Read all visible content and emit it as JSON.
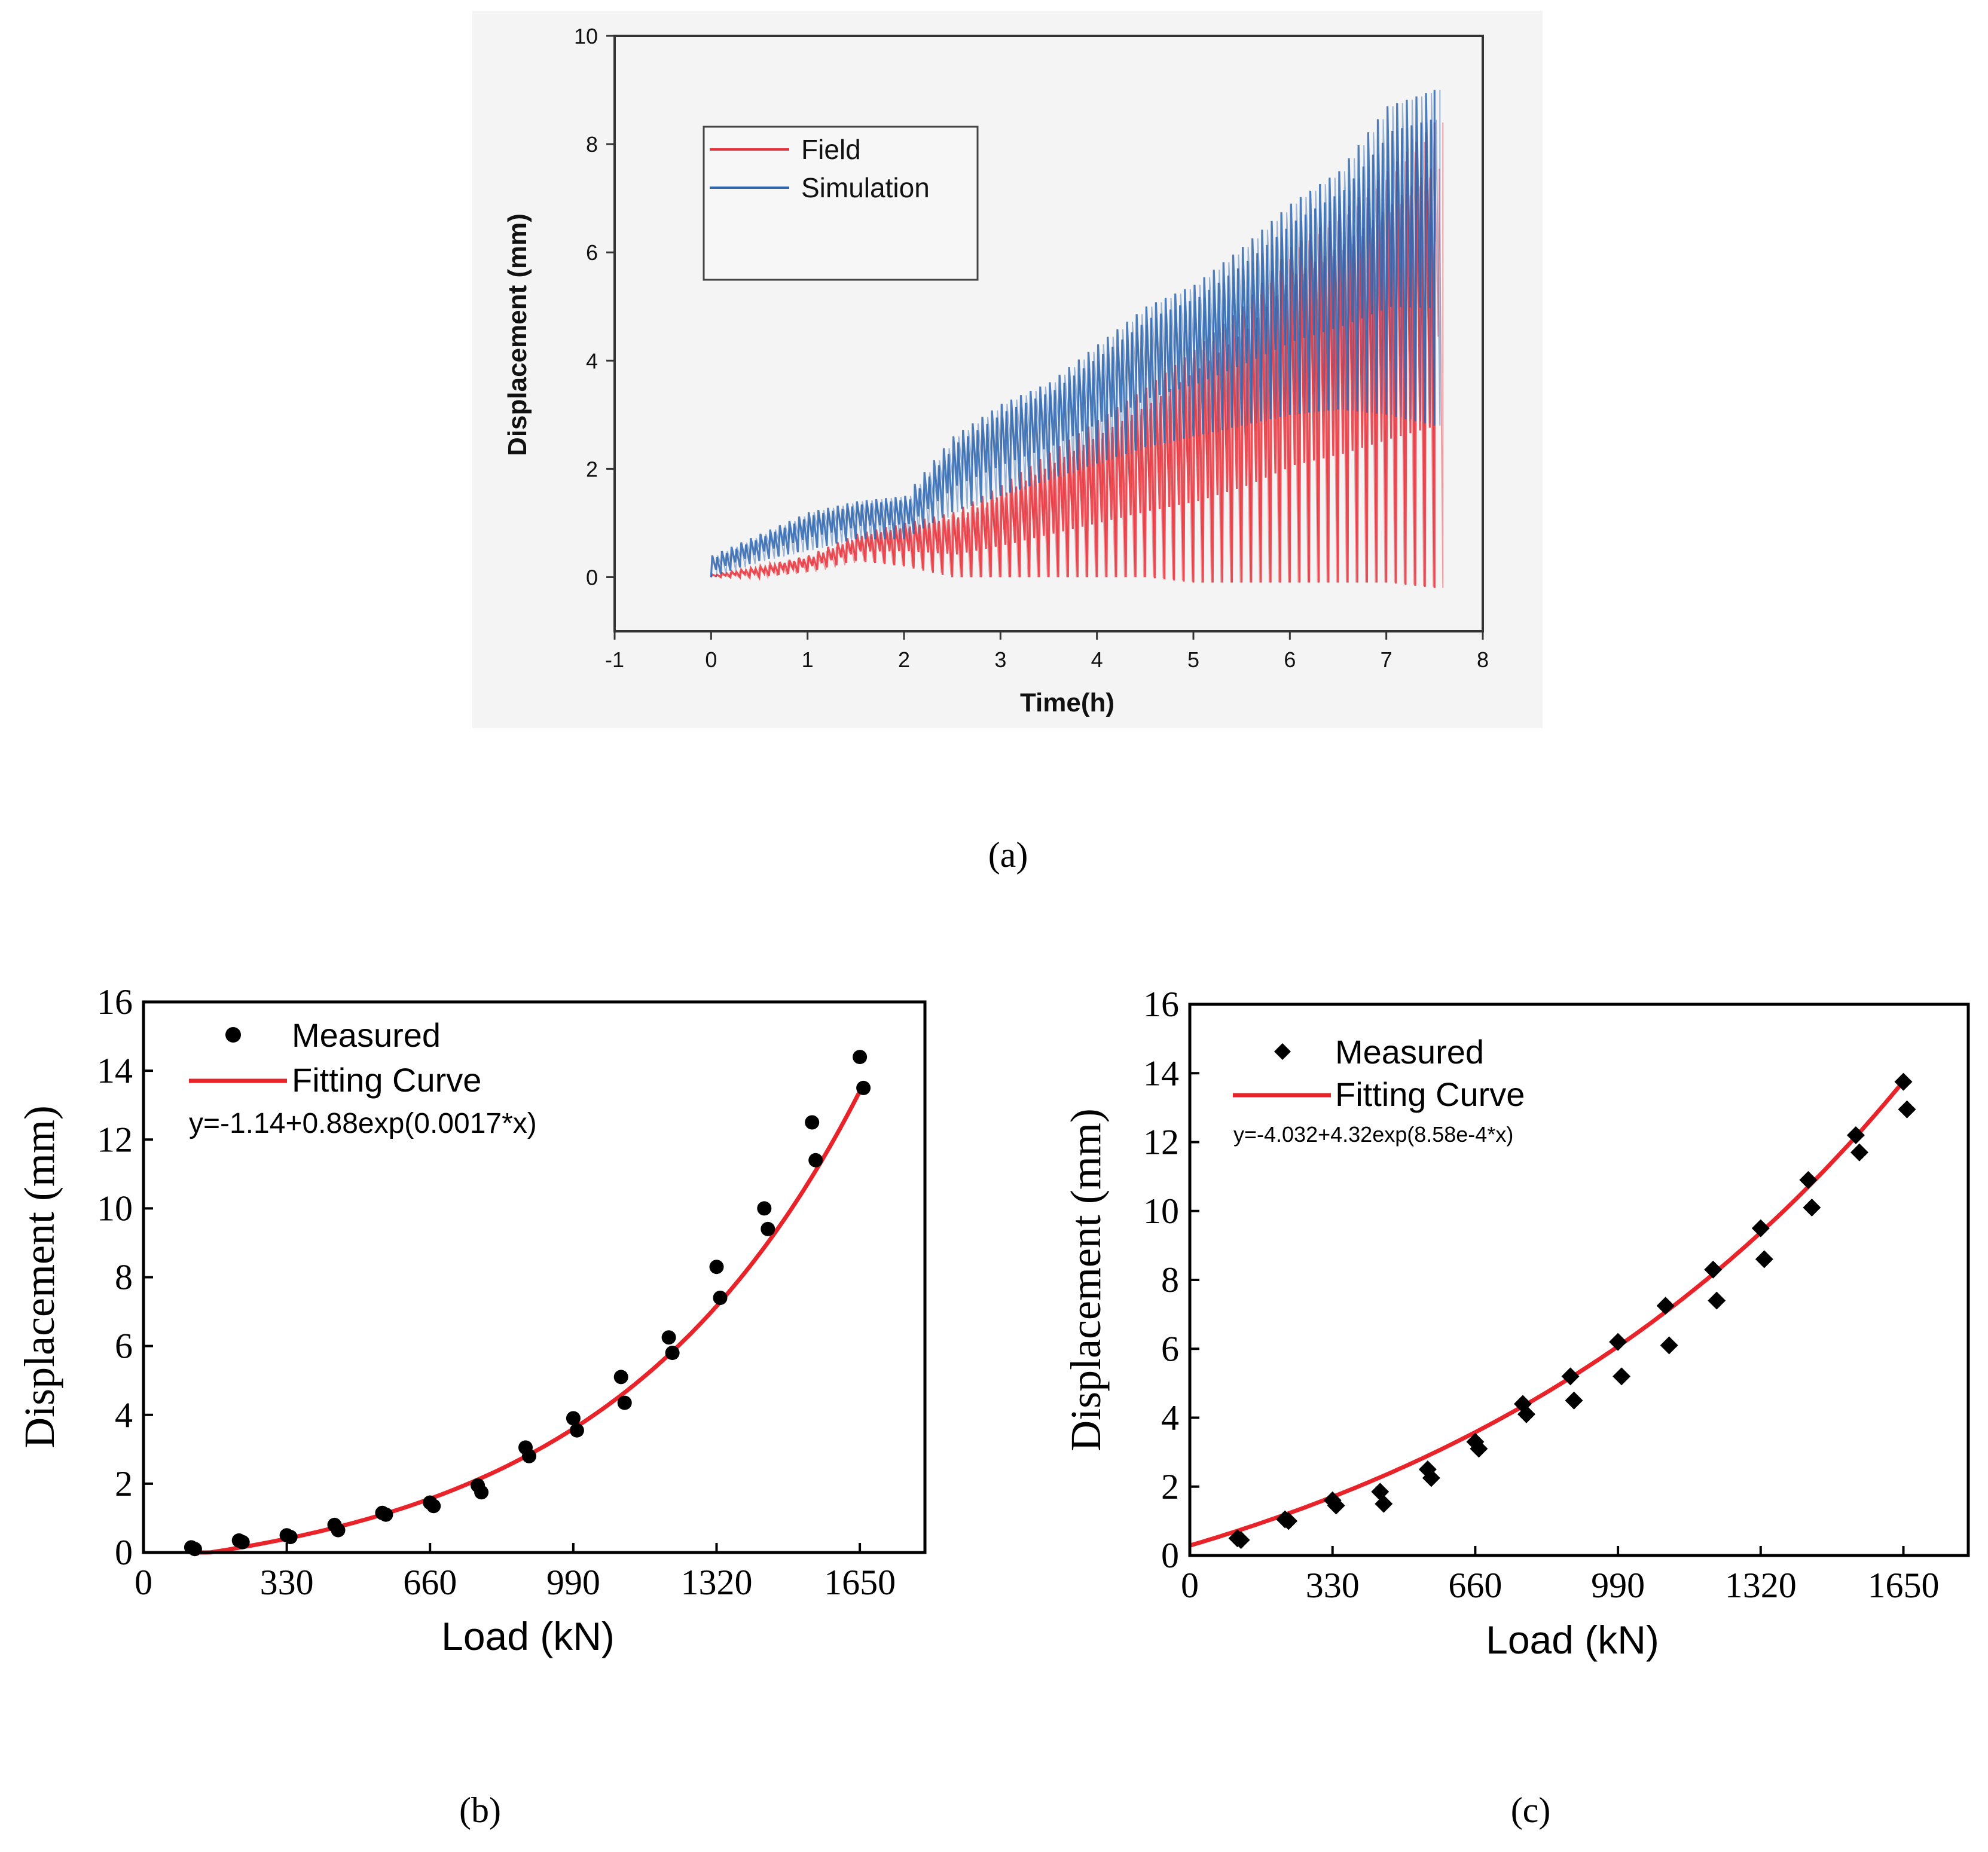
{
  "chart_data": [
    {
      "id": "a",
      "type": "line",
      "panel_label": "(a)",
      "title": "",
      "xlabel": "Time(h)",
      "ylabel": "Displacement (mm)",
      "xlim": [
        -1,
        8
      ],
      "ylim": [
        -1,
        10
      ],
      "xticks": [
        "-1",
        "0",
        "1",
        "2",
        "3",
        "4",
        "5",
        "6",
        "7",
        "8"
      ],
      "yticks": [
        "0",
        "2",
        "4",
        "6",
        "8",
        "10"
      ],
      "legend": {
        "position": "upper-left",
        "entries": [
          "Field",
          "Simulation"
        ]
      },
      "series": [
        {
          "name": "Field",
          "color": "#e8303a",
          "description": "cyclic loading, oscillates between low and peak each cycle",
          "step_time": [
            0,
            0.5,
            1,
            1.5,
            2,
            2.5,
            3,
            3.5,
            4,
            4.5,
            5,
            5.5,
            6,
            6.5,
            7,
            7.5
          ],
          "peak": [
            0.05,
            0.2,
            0.4,
            0.8,
            1.0,
            1.2,
            1.7,
            2.3,
            2.9,
            3.5,
            4.2,
            5.0,
            6.1,
            6.7,
            7.5,
            8.4
          ],
          "low": [
            0.0,
            0.0,
            0.1,
            0.3,
            0.2,
            0.0,
            0.0,
            0.0,
            0.0,
            0.0,
            -0.1,
            -0.1,
            -0.1,
            -0.1,
            -0.1,
            -0.2
          ]
        },
        {
          "name": "Simulation",
          "color": "#2e66b0",
          "description": "cyclic loading, oscillates between low and peak each cycle",
          "step_time": [
            0,
            0.5,
            1,
            1.5,
            2,
            2.5,
            3,
            3.5,
            4,
            4.5,
            5,
            5.5,
            6,
            6.5,
            7,
            7.5
          ],
          "peak": [
            0.4,
            0.8,
            1.2,
            1.4,
            1.5,
            2.6,
            3.2,
            3.6,
            4.3,
            5.0,
            5.4,
            6.1,
            6.9,
            7.5,
            8.7,
            9.0
          ],
          "low": [
            0.0,
            0.3,
            0.5,
            0.7,
            0.7,
            1.2,
            1.5,
            1.8,
            2.1,
            2.4,
            2.6,
            2.8,
            3.0,
            3.1,
            3.0,
            2.8
          ]
        }
      ]
    },
    {
      "id": "b",
      "type": "scatter",
      "panel_label": "(b)",
      "xlabel": "Load (kN)",
      "ylabel": "Displacement (mm)",
      "xlim": [
        0,
        1800
      ],
      "ylim": [
        0,
        16
      ],
      "xticks": [
        "0",
        "330",
        "660",
        "990",
        "1320",
        "1650"
      ],
      "yticks": [
        "0",
        "2",
        "4",
        "6",
        "8",
        "10",
        "12",
        "14",
        "16"
      ],
      "legend": {
        "position": "top-left",
        "entries": [
          "Measured",
          "Fitting Curve"
        ]
      },
      "equation": "y=-1.14+0.88exp(0.0017*x)",
      "marker": "circle",
      "fit": {
        "name": "Fitting Curve",
        "color": "#e8232a",
        "a": -1.14,
        "b": 0.88,
        "c": 0.0017,
        "x_start": 130,
        "x_end": 1650
      },
      "series": [
        {
          "name": "Measured",
          "x": [
            110,
            220,
            330,
            440,
            550,
            660,
            770,
            880,
            990,
            1100,
            1210,
            1320,
            1430,
            1540,
            1650
          ],
          "y": [
            [
              0.15,
              0.1
            ],
            [
              0.35,
              0.3
            ],
            [
              0.5,
              0.45
            ],
            [
              0.8,
              0.65
            ],
            [
              1.15,
              1.1
            ],
            [
              1.45,
              1.35
            ],
            [
              1.95,
              1.75
            ],
            [
              3.05,
              2.8
            ],
            [
              3.9,
              3.55
            ],
            [
              5.1,
              4.35
            ],
            [
              6.25,
              5.8
            ],
            [
              8.3,
              7.4
            ],
            [
              10.0,
              9.4
            ],
            [
              12.5,
              11.4
            ],
            [
              14.4,
              13.5
            ]
          ]
        }
      ]
    },
    {
      "id": "c",
      "type": "scatter",
      "panel_label": "(c)",
      "xlabel": "Load (kN)",
      "ylabel": "Displacement (mm)",
      "xlim": [
        0,
        1800
      ],
      "ylim": [
        0,
        16
      ],
      "xticks": [
        "0",
        "330",
        "660",
        "990",
        "1320",
        "1650"
      ],
      "yticks": [
        "0",
        "2",
        "4",
        "6",
        "8",
        "10",
        "12",
        "14",
        "16"
      ],
      "legend": {
        "position": "top-left",
        "entries": [
          "Measured",
          "Fitting Curve"
        ]
      },
      "equation": "y=-4.032+4.32exp(8.58e-4*x)",
      "marker": "diamond",
      "fit": {
        "name": "Fitting Curve",
        "color": "#e8232a",
        "a": -4.032,
        "b": 4.32,
        "c": 0.000858,
        "x_start": 0,
        "x_end": 1650
      },
      "series": [
        {
          "name": "Measured",
          "x": [
            110,
            220,
            330,
            440,
            550,
            660,
            770,
            880,
            990,
            1100,
            1210,
            1320,
            1430,
            1540,
            1650
          ],
          "y": [
            [
              0.5,
              0.45
            ],
            [
              1.05,
              1.0
            ],
            [
              1.6,
              1.45
            ],
            [
              1.85,
              1.5
            ],
            [
              2.5,
              2.25
            ],
            [
              3.3,
              3.1
            ],
            [
              4.4,
              4.1
            ],
            [
              5.2,
              4.5
            ],
            [
              6.2,
              5.2
            ],
            [
              7.25,
              6.1
            ],
            [
              8.3,
              7.4
            ],
            [
              9.5,
              8.6
            ],
            [
              10.9,
              10.1
            ],
            [
              12.2,
              11.7
            ],
            [
              13.75,
              12.95
            ]
          ]
        }
      ]
    }
  ]
}
